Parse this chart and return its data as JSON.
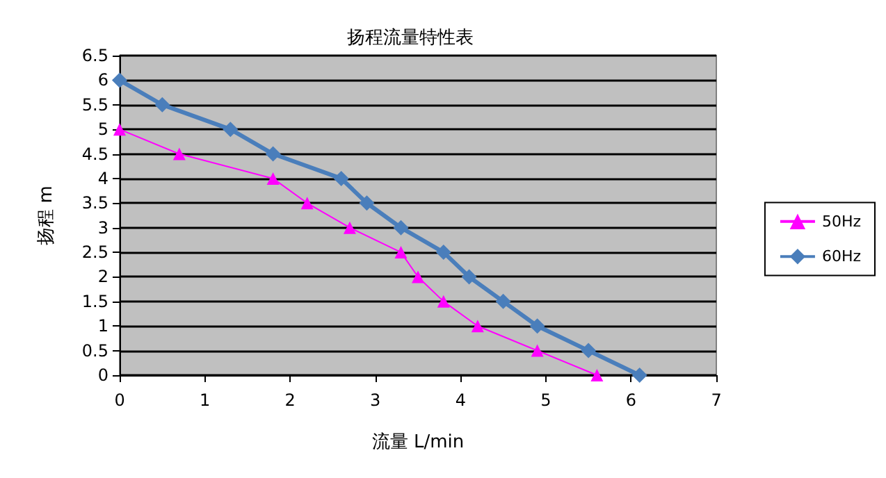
{
  "chart_data": {
    "type": "line",
    "title": "扬程流量特性表",
    "xlabel": "流量 L/min",
    "ylabel": "扬程 m",
    "xlim": [
      0,
      7
    ],
    "xticks": [
      0,
      1,
      2,
      3,
      4,
      5,
      6,
      7
    ],
    "ylim": [
      0,
      6.5
    ],
    "yticks": [
      0,
      0.5,
      1,
      1.5,
      2,
      2.5,
      3,
      3.5,
      4,
      4.5,
      5,
      5.5,
      6,
      6.5
    ],
    "grid": "y",
    "legend": "right",
    "series": [
      {
        "name": "50Hz",
        "color": "#ff00ff",
        "marker": "triangle",
        "x": [
          0,
          0.7,
          1.8,
          2.2,
          2.7,
          3.3,
          3.5,
          3.8,
          4.2,
          4.9,
          5.6
        ],
        "values": [
          5,
          4.5,
          4,
          3.5,
          3,
          2.5,
          2,
          1.5,
          1,
          0.5,
          0
        ]
      },
      {
        "name": "60Hz",
        "color": "#4a7ebb",
        "marker": "diamond",
        "x": [
          0,
          0.5,
          1.3,
          1.8,
          2.6,
          2.9,
          3.3,
          3.8,
          4.1,
          4.5,
          4.9,
          5.5,
          6.1
        ],
        "values": [
          6,
          5.5,
          5,
          4.5,
          4,
          3.5,
          3,
          2.5,
          2,
          1.5,
          1,
          0.5,
          0
        ]
      }
    ]
  }
}
